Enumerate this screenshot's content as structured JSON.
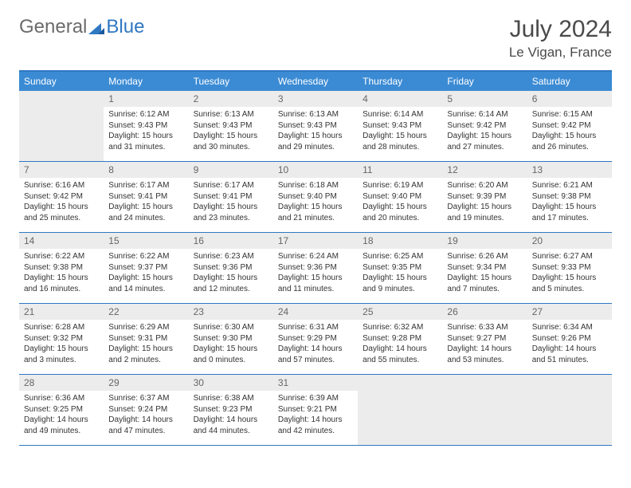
{
  "logo": {
    "general": "General",
    "blue": "Blue"
  },
  "title": "July 2024",
  "location": "Le Vigan, France",
  "colors": {
    "header_bg": "#3b8bd4",
    "header_text": "#ffffff",
    "border": "#2f78c2",
    "daynum_bg": "#ececec",
    "daynum_text": "#666666",
    "body_text": "#333333",
    "logo_gray": "#6b6b6b",
    "logo_blue": "#2f78c2"
  },
  "day_names": [
    "Sunday",
    "Monday",
    "Tuesday",
    "Wednesday",
    "Thursday",
    "Friday",
    "Saturday"
  ],
  "cells": [
    {
      "blank": true
    },
    {
      "day": "1",
      "sunrise": "Sunrise: 6:12 AM",
      "sunset": "Sunset: 9:43 PM",
      "daylight": "Daylight: 15 hours and 31 minutes."
    },
    {
      "day": "2",
      "sunrise": "Sunrise: 6:13 AM",
      "sunset": "Sunset: 9:43 PM",
      "daylight": "Daylight: 15 hours and 30 minutes."
    },
    {
      "day": "3",
      "sunrise": "Sunrise: 6:13 AM",
      "sunset": "Sunset: 9:43 PM",
      "daylight": "Daylight: 15 hours and 29 minutes."
    },
    {
      "day": "4",
      "sunrise": "Sunrise: 6:14 AM",
      "sunset": "Sunset: 9:43 PM",
      "daylight": "Daylight: 15 hours and 28 minutes."
    },
    {
      "day": "5",
      "sunrise": "Sunrise: 6:14 AM",
      "sunset": "Sunset: 9:42 PM",
      "daylight": "Daylight: 15 hours and 27 minutes."
    },
    {
      "day": "6",
      "sunrise": "Sunrise: 6:15 AM",
      "sunset": "Sunset: 9:42 PM",
      "daylight": "Daylight: 15 hours and 26 minutes."
    },
    {
      "day": "7",
      "sunrise": "Sunrise: 6:16 AM",
      "sunset": "Sunset: 9:42 PM",
      "daylight": "Daylight: 15 hours and 25 minutes."
    },
    {
      "day": "8",
      "sunrise": "Sunrise: 6:17 AM",
      "sunset": "Sunset: 9:41 PM",
      "daylight": "Daylight: 15 hours and 24 minutes."
    },
    {
      "day": "9",
      "sunrise": "Sunrise: 6:17 AM",
      "sunset": "Sunset: 9:41 PM",
      "daylight": "Daylight: 15 hours and 23 minutes."
    },
    {
      "day": "10",
      "sunrise": "Sunrise: 6:18 AM",
      "sunset": "Sunset: 9:40 PM",
      "daylight": "Daylight: 15 hours and 21 minutes."
    },
    {
      "day": "11",
      "sunrise": "Sunrise: 6:19 AM",
      "sunset": "Sunset: 9:40 PM",
      "daylight": "Daylight: 15 hours and 20 minutes."
    },
    {
      "day": "12",
      "sunrise": "Sunrise: 6:20 AM",
      "sunset": "Sunset: 9:39 PM",
      "daylight": "Daylight: 15 hours and 19 minutes."
    },
    {
      "day": "13",
      "sunrise": "Sunrise: 6:21 AM",
      "sunset": "Sunset: 9:38 PM",
      "daylight": "Daylight: 15 hours and 17 minutes."
    },
    {
      "day": "14",
      "sunrise": "Sunrise: 6:22 AM",
      "sunset": "Sunset: 9:38 PM",
      "daylight": "Daylight: 15 hours and 16 minutes."
    },
    {
      "day": "15",
      "sunrise": "Sunrise: 6:22 AM",
      "sunset": "Sunset: 9:37 PM",
      "daylight": "Daylight: 15 hours and 14 minutes."
    },
    {
      "day": "16",
      "sunrise": "Sunrise: 6:23 AM",
      "sunset": "Sunset: 9:36 PM",
      "daylight": "Daylight: 15 hours and 12 minutes."
    },
    {
      "day": "17",
      "sunrise": "Sunrise: 6:24 AM",
      "sunset": "Sunset: 9:36 PM",
      "daylight": "Daylight: 15 hours and 11 minutes."
    },
    {
      "day": "18",
      "sunrise": "Sunrise: 6:25 AM",
      "sunset": "Sunset: 9:35 PM",
      "daylight": "Daylight: 15 hours and 9 minutes."
    },
    {
      "day": "19",
      "sunrise": "Sunrise: 6:26 AM",
      "sunset": "Sunset: 9:34 PM",
      "daylight": "Daylight: 15 hours and 7 minutes."
    },
    {
      "day": "20",
      "sunrise": "Sunrise: 6:27 AM",
      "sunset": "Sunset: 9:33 PM",
      "daylight": "Daylight: 15 hours and 5 minutes."
    },
    {
      "day": "21",
      "sunrise": "Sunrise: 6:28 AM",
      "sunset": "Sunset: 9:32 PM",
      "daylight": "Daylight: 15 hours and 3 minutes."
    },
    {
      "day": "22",
      "sunrise": "Sunrise: 6:29 AM",
      "sunset": "Sunset: 9:31 PM",
      "daylight": "Daylight: 15 hours and 2 minutes."
    },
    {
      "day": "23",
      "sunrise": "Sunrise: 6:30 AM",
      "sunset": "Sunset: 9:30 PM",
      "daylight": "Daylight: 15 hours and 0 minutes."
    },
    {
      "day": "24",
      "sunrise": "Sunrise: 6:31 AM",
      "sunset": "Sunset: 9:29 PM",
      "daylight": "Daylight: 14 hours and 57 minutes."
    },
    {
      "day": "25",
      "sunrise": "Sunrise: 6:32 AM",
      "sunset": "Sunset: 9:28 PM",
      "daylight": "Daylight: 14 hours and 55 minutes."
    },
    {
      "day": "26",
      "sunrise": "Sunrise: 6:33 AM",
      "sunset": "Sunset: 9:27 PM",
      "daylight": "Daylight: 14 hours and 53 minutes."
    },
    {
      "day": "27",
      "sunrise": "Sunrise: 6:34 AM",
      "sunset": "Sunset: 9:26 PM",
      "daylight": "Daylight: 14 hours and 51 minutes."
    },
    {
      "day": "28",
      "sunrise": "Sunrise: 6:36 AM",
      "sunset": "Sunset: 9:25 PM",
      "daylight": "Daylight: 14 hours and 49 minutes."
    },
    {
      "day": "29",
      "sunrise": "Sunrise: 6:37 AM",
      "sunset": "Sunset: 9:24 PM",
      "daylight": "Daylight: 14 hours and 47 minutes."
    },
    {
      "day": "30",
      "sunrise": "Sunrise: 6:38 AM",
      "sunset": "Sunset: 9:23 PM",
      "daylight": "Daylight: 14 hours and 44 minutes."
    },
    {
      "day": "31",
      "sunrise": "Sunrise: 6:39 AM",
      "sunset": "Sunset: 9:21 PM",
      "daylight": "Daylight: 14 hours and 42 minutes."
    },
    {
      "blank": true
    },
    {
      "blank": true
    },
    {
      "blank": true
    }
  ]
}
